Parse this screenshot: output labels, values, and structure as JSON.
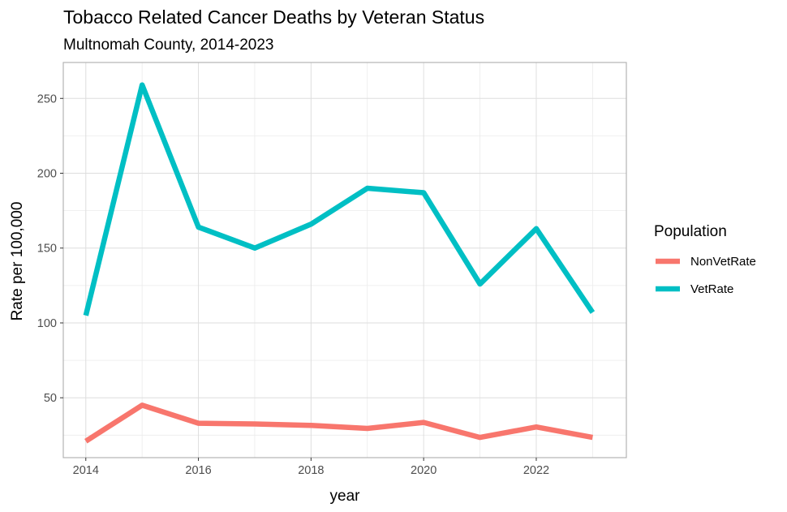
{
  "chart_data": {
    "type": "line",
    "title": "Tobacco Related Cancer Deaths by Veteran Status",
    "subtitle": "Multnomah County, 2014-2023",
    "xlabel": "year",
    "ylabel": "Rate per 100,000",
    "x": [
      2014,
      2015,
      2016,
      2017,
      2018,
      2019,
      2020,
      2021,
      2022,
      2023
    ],
    "x_ticks": [
      2014,
      2016,
      2018,
      2020,
      2022
    ],
    "y_ticks": [
      50,
      100,
      150,
      200,
      250
    ],
    "xlim": [
      2013.6,
      2023.6
    ],
    "ylim": [
      10,
      274
    ],
    "grid": true,
    "legend": {
      "title": "Population",
      "position": "right"
    },
    "series": [
      {
        "name": "NonVetRate",
        "color": "#F8766D",
        "values": [
          21,
          45,
          33,
          32.5,
          31.5,
          29.5,
          33.5,
          23.5,
          30.5,
          23.5
        ]
      },
      {
        "name": "VetRate",
        "color": "#00BFC4",
        "values": [
          105,
          259,
          164,
          150,
          166,
          190,
          187,
          126,
          163,
          107
        ]
      }
    ]
  }
}
